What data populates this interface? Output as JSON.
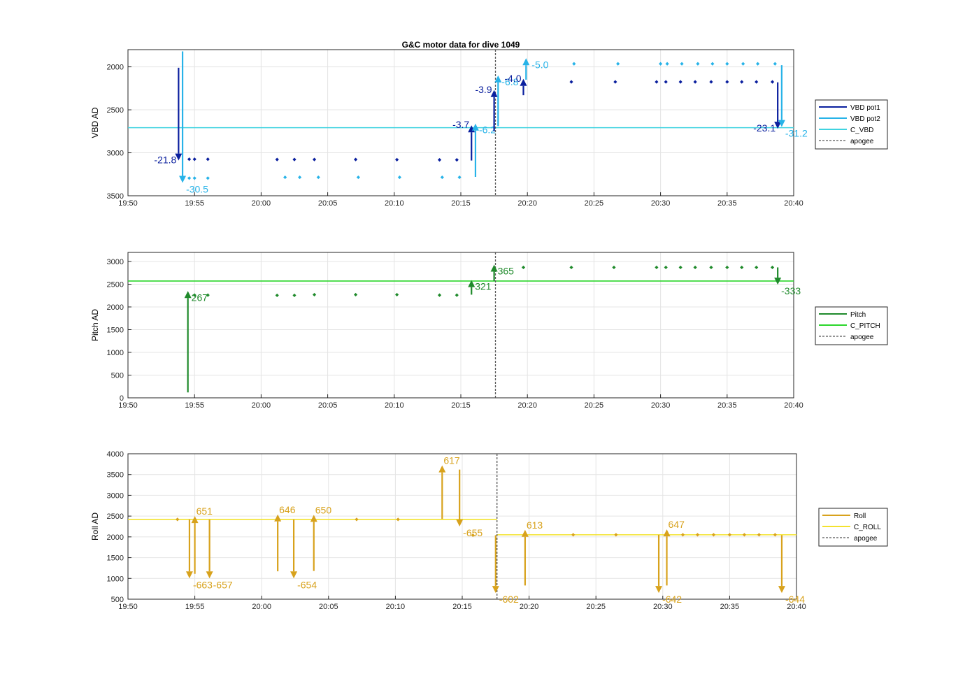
{
  "figure_title": "G&C motor data for dive 1049",
  "colors": {
    "vbd_pot1": "#0a1f9e",
    "vbd_pot2": "#27b3e8",
    "c_vbd": "#3fd3e0",
    "pitch": "#1f8a2b",
    "c_pitch": "#2bd62b",
    "roll": "#d8a21c",
    "c_roll": "#f3e22e",
    "apogee": "#555555"
  },
  "chart_data": [
    {
      "type": "line",
      "name": "vbd",
      "title": "G&C motor data for dive 1049",
      "xlabel": "",
      "ylabel": "VBD AD",
      "x_unit": "clock time",
      "xlim": [
        "19:50",
        "20:40"
      ],
      "ylim": [
        3500,
        1800
      ],
      "y_reversed": true,
      "x_ticks": [
        "19:50",
        "19:55",
        "20:00",
        "20:05",
        "20:10",
        "20:15",
        "20:20",
        "20:25",
        "20:30",
        "20:35",
        "20:40"
      ],
      "y_ticks": [
        2000,
        2500,
        3000,
        3500
      ],
      "grid": true,
      "legend": {
        "placement": "outside-right",
        "entries": [
          "VBD pot1",
          "VBD pot2",
          "C_VBD",
          "apogee"
        ]
      },
      "reference_lines": [
        {
          "label": "C_VBD",
          "value": 2708,
          "series": "c_vbd"
        }
      ],
      "apogee": "20:17.6",
      "scatter": [
        {
          "series": "vbd_pot1",
          "points": [
            [
              "19:54.6",
              3075
            ],
            [
              "19:55.0",
              3075
            ],
            [
              "19:56.0",
              3075
            ],
            [
              "20:01.2",
              3078
            ],
            [
              "20:02.5",
              3078
            ],
            [
              "20:04.0",
              3078
            ],
            [
              "20:07.1",
              3078
            ],
            [
              "20:10.2",
              3080
            ],
            [
              "20:13.4",
              3082
            ],
            [
              "20:14.7",
              3082
            ],
            [
              "20:23.3",
              2175
            ],
            [
              "20:26.6",
              2175
            ],
            [
              "20:29.7",
              2175
            ],
            [
              "20:30.4",
              2175
            ],
            [
              "20:31.5",
              2175
            ],
            [
              "20:32.6",
              2175
            ],
            [
              "20:33.8",
              2175
            ],
            [
              "20:35.0",
              2175
            ],
            [
              "20:36.1",
              2175
            ],
            [
              "20:37.2",
              2175
            ],
            [
              "20:38.4",
              2175
            ]
          ]
        },
        {
          "series": "vbd_pot2",
          "points": [
            [
              "19:54.6",
              3295
            ],
            [
              "19:55.0",
              3295
            ],
            [
              "19:56.0",
              3295
            ],
            [
              "20:01.8",
              3285
            ],
            [
              "20:02.9",
              3285
            ],
            [
              "20:04.3",
              3285
            ],
            [
              "20:07.3",
              3285
            ],
            [
              "20:10.4",
              3285
            ],
            [
              "20:13.6",
              3285
            ],
            [
              "20:14.9",
              3285
            ],
            [
              "20:23.5",
              1965
            ],
            [
              "20:26.8",
              1965
            ],
            [
              "20:30.0",
              1965
            ],
            [
              "20:30.5",
              1965
            ],
            [
              "20:31.6",
              1965
            ],
            [
              "20:32.8",
              1965
            ],
            [
              "20:33.9",
              1965
            ],
            [
              "20:35.0",
              1965
            ],
            [
              "20:36.2",
              1965
            ],
            [
              "20:37.3",
              1965
            ],
            [
              "20:38.6",
              1965
            ]
          ]
        }
      ],
      "arrows": [
        {
          "series": "vbd_pot1",
          "x": "19:53.8",
          "from": 2010,
          "to": 3090,
          "label": "-21.8",
          "label_side": "left"
        },
        {
          "series": "vbd_pot2",
          "x": "19:54.1",
          "from": 1820,
          "to": 3350,
          "label": "-30.5",
          "label_side": "below-right"
        },
        {
          "series": "vbd_pot1",
          "x": "20:15.8",
          "from": 3090,
          "to": 2680,
          "label": "-3.7",
          "label_side": "left"
        },
        {
          "series": "vbd_pot2",
          "x": "20:16.1",
          "from": 3280,
          "to": 2660,
          "label": "-6.2",
          "label_side": "below-right"
        },
        {
          "series": "vbd_pot1",
          "x": "20:17.5",
          "from": 2750,
          "to": 2270,
          "label": "-3.9",
          "label_side": "left"
        },
        {
          "series": "vbd_pot2",
          "x": "20:17.8",
          "from": 2690,
          "to": 2100,
          "label": "-6.8",
          "label_side": "below-right"
        },
        {
          "series": "vbd_pot1",
          "x": "20:19.7",
          "from": 2330,
          "to": 2140,
          "label": "-4.0",
          "label_side": "left"
        },
        {
          "series": "vbd_pot2",
          "x": "20:19.9",
          "from": 2150,
          "to": 1900,
          "label": "-5.0",
          "label_side": "right"
        },
        {
          "series": "vbd_pot1",
          "x": "20:38.8",
          "from": 2180,
          "to": 2720,
          "label": "-23.1",
          "label_side": "left"
        },
        {
          "series": "vbd_pot2",
          "x": "20:39.1",
          "from": 1980,
          "to": 2700,
          "label": "-31.2",
          "label_side": "below-right"
        }
      ]
    },
    {
      "type": "line",
      "name": "pitch",
      "xlabel": "",
      "ylabel": "Pitch AD",
      "x_unit": "clock time",
      "xlim": [
        "19:50",
        "20:40"
      ],
      "ylim": [
        0,
        3200
      ],
      "x_ticks": [
        "19:50",
        "19:55",
        "20:00",
        "20:05",
        "20:10",
        "20:15",
        "20:20",
        "20:25",
        "20:30",
        "20:35",
        "20:40"
      ],
      "y_ticks": [
        0,
        500,
        1000,
        1500,
        2000,
        2500,
        3000
      ],
      "grid": true,
      "legend": {
        "placement": "outside-right",
        "entries": [
          "Pitch",
          "C_PITCH",
          "apogee"
        ]
      },
      "reference_lines": [
        {
          "label": "C_PITCH",
          "value": 2570,
          "series": "c_pitch"
        }
      ],
      "apogee": "20:17.6",
      "scatter": [
        {
          "series": "pitch",
          "points": [
            [
              "19:55.0",
              2260
            ],
            [
              "19:56.0",
              2260
            ],
            [
              "20:01.2",
              2255
            ],
            [
              "20:02.5",
              2255
            ],
            [
              "20:04.0",
              2270
            ],
            [
              "20:07.1",
              2270
            ],
            [
              "20:10.2",
              2270
            ],
            [
              "20:13.4",
              2260
            ],
            [
              "20:14.7",
              2260
            ],
            [
              "20:19.7",
              2870
            ],
            [
              "20:23.3",
              2870
            ],
            [
              "20:26.5",
              2870
            ],
            [
              "20:29.7",
              2870
            ],
            [
              "20:30.4",
              2870
            ],
            [
              "20:31.5",
              2870
            ],
            [
              "20:32.6",
              2870
            ],
            [
              "20:33.8",
              2870
            ],
            [
              "20:35.0",
              2870
            ],
            [
              "20:36.1",
              2870
            ],
            [
              "20:37.2",
              2870
            ],
            [
              "20:38.4",
              2870
            ]
          ]
        }
      ],
      "arrows": [
        {
          "series": "pitch",
          "x": "19:54.5",
          "from": 120,
          "to": 2350,
          "label": "267",
          "label_side": "below-right"
        },
        {
          "series": "pitch",
          "x": "20:15.8",
          "from": 2270,
          "to": 2590,
          "label": "321",
          "label_side": "below-right"
        },
        {
          "series": "pitch",
          "x": "20:17.5",
          "from": 2570,
          "to": 2930,
          "label": "365",
          "label_side": "below-right"
        },
        {
          "series": "pitch",
          "x": "20:38.8",
          "from": 2870,
          "to": 2490,
          "label": "-333",
          "label_side": "below-right"
        }
      ]
    },
    {
      "type": "line",
      "name": "roll",
      "xlabel": "",
      "ylabel": "Roll AD",
      "x_unit": "clock time",
      "xlim": [
        "19:50",
        "20:40"
      ],
      "ylim": [
        500,
        4000
      ],
      "x_ticks": [
        "19:50",
        "19:55",
        "20:00",
        "20:05",
        "20:10",
        "20:15",
        "20:20",
        "20:25",
        "20:30",
        "20:35",
        "20:40"
      ],
      "y_ticks": [
        500,
        1000,
        1500,
        2000,
        2500,
        3000,
        3500,
        4000
      ],
      "grid": true,
      "legend": {
        "placement": "outside-right",
        "entries": [
          "Roll",
          "C_ROLL",
          "apogee"
        ]
      },
      "reference_lines": [
        {
          "label": "C_ROLL",
          "value": 2420,
          "series": "c_roll",
          "x_from": "19:50",
          "x_to": "20:17.6"
        },
        {
          "label": "C_ROLL",
          "value": 2050,
          "series": "c_roll",
          "x_from": "20:17.6",
          "x_to": "20:40"
        }
      ],
      "apogee": "20:17.6",
      "scatter": [
        {
          "series": "roll",
          "points": [
            [
              "19:53.7",
              2420
            ],
            [
              "20:07.1",
              2420
            ],
            [
              "20:10.2",
              2420
            ],
            [
              "20:15.8",
              2040
            ],
            [
              "20:23.3",
              2050
            ],
            [
              "20:26.5",
              2050
            ],
            [
              "20:31.5",
              2050
            ],
            [
              "20:32.6",
              2050
            ],
            [
              "20:33.8",
              2050
            ],
            [
              "20:35.0",
              2050
            ],
            [
              "20:36.1",
              2050
            ],
            [
              "20:37.2",
              2050
            ],
            [
              "20:38.4",
              2050
            ]
          ]
        }
      ],
      "arrows": [
        {
          "series": "roll",
          "x": "19:54.6",
          "from": 2420,
          "to": 1000,
          "label": "-663",
          "label_side": "below-right"
        },
        {
          "series": "roll",
          "x": "19:55.0",
          "from": 1110,
          "to": 2500,
          "label": "651",
          "label_side": "above-right"
        },
        {
          "series": "roll",
          "x": "19:56.1",
          "from": 2420,
          "to": 1000,
          "label": "-657",
          "label_side": "below-right"
        },
        {
          "series": "roll",
          "x": "20:01.2",
          "from": 1170,
          "to": 2540,
          "label": "646",
          "label_side": "above-right"
        },
        {
          "series": "roll",
          "x": "20:02.4",
          "from": 2420,
          "to": 1000,
          "label": "-654",
          "label_side": "below-right"
        },
        {
          "series": "roll",
          "x": "20:03.9",
          "from": 1180,
          "to": 2530,
          "label": "650",
          "label_side": "above-right"
        },
        {
          "series": "roll",
          "x": "20:13.5",
          "from": 2430,
          "to": 3720,
          "label": "617",
          "label_side": "above-right"
        },
        {
          "series": "roll",
          "x": "20:14.8",
          "from": 3620,
          "to": 2250,
          "label": "-655",
          "label_side": "below-right"
        },
        {
          "series": "roll",
          "x": "20:17.5",
          "from": 2040,
          "to": 650,
          "label": "-602",
          "label_side": "below-right"
        },
        {
          "series": "roll",
          "x": "20:19.7",
          "from": 830,
          "to": 2170,
          "label": "613",
          "label_side": "above-right"
        },
        {
          "series": "roll",
          "x": "20:29.7",
          "from": 2050,
          "to": 650,
          "label": "-642",
          "label_side": "below-right"
        },
        {
          "series": "roll",
          "x": "20:30.3",
          "from": 830,
          "to": 2180,
          "label": "647",
          "label_side": "above-right"
        },
        {
          "series": "roll",
          "x": "20:38.9",
          "from": 2040,
          "to": 650,
          "label": "-644",
          "label_side": "below-right"
        }
      ]
    }
  ],
  "legends": [
    {
      "entries": [
        {
          "label": "VBD pot1",
          "series": "vbd_pot1"
        },
        {
          "label": "VBD pot2",
          "series": "vbd_pot2"
        },
        {
          "label": "C_VBD",
          "series": "c_vbd"
        },
        {
          "label": "apogee",
          "series": "apogee",
          "dashed": true
        }
      ]
    },
    {
      "entries": [
        {
          "label": "Pitch",
          "series": "pitch"
        },
        {
          "label": "C_PITCH",
          "series": "c_pitch"
        },
        {
          "label": "apogee",
          "series": "apogee",
          "dashed": true
        }
      ]
    },
    {
      "entries": [
        {
          "label": "Roll",
          "series": "roll"
        },
        {
          "label": "C_ROLL",
          "series": "c_roll"
        },
        {
          "label": "apogee",
          "series": "apogee",
          "dashed": true
        }
      ]
    }
  ]
}
